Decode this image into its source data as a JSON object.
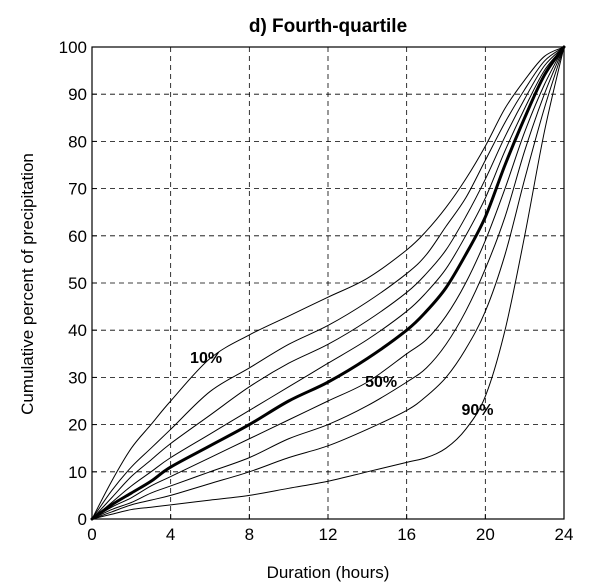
{
  "chart_data": {
    "type": "line",
    "title": "d) Fourth-quartile",
    "xlabel": "Duration (hours)",
    "ylabel": "Cumulative percent of precipitation",
    "xlim": [
      0,
      24
    ],
    "ylim": [
      0,
      100
    ],
    "xticks": [
      0,
      4,
      8,
      12,
      16,
      20,
      24
    ],
    "yticks": [
      0,
      10,
      20,
      30,
      40,
      50,
      60,
      70,
      80,
      90,
      100
    ],
    "grid": true,
    "legend": "none",
    "line_color": "#000000",
    "x": [
      0,
      1,
      2,
      3,
      4,
      6,
      8,
      10,
      12,
      14,
      16,
      17,
      18,
      19,
      20,
      21,
      22,
      23,
      24
    ],
    "series": [
      {
        "name": "10%",
        "label_at": [
          5.8,
          33
        ],
        "bold": false,
        "values": [
          0,
          8,
          15,
          20,
          25,
          34,
          39,
          43,
          47,
          51,
          57,
          61,
          66,
          72,
          79,
          87,
          93,
          98,
          100
        ]
      },
      {
        "name": "",
        "bold": false,
        "values": [
          0,
          6,
          11,
          15,
          19,
          27,
          32,
          37,
          41,
          46,
          52,
          56,
          62,
          68,
          76,
          84,
          91,
          97,
          100
        ]
      },
      {
        "name": "",
        "bold": false,
        "values": [
          0,
          4.5,
          9,
          12.5,
          16,
          22,
          28,
          33,
          37,
          42,
          48,
          52,
          57,
          64,
          72,
          81,
          89,
          96,
          100
        ]
      },
      {
        "name": "",
        "bold": false,
        "values": [
          0,
          3.5,
          7,
          10,
          13,
          18,
          23,
          28,
          33,
          38,
          44,
          48,
          53,
          60,
          68,
          78,
          87,
          95,
          100
        ]
      },
      {
        "name": "50%",
        "label_at": [
          14.7,
          28
        ],
        "bold": true,
        "values": [
          0,
          3,
          5.5,
          8,
          11,
          15.5,
          20,
          25,
          29,
          34,
          40,
          44,
          49,
          56,
          64,
          75,
          85,
          94,
          100
        ]
      },
      {
        "name": "",
        "bold": false,
        "values": [
          0,
          2.5,
          4.5,
          7,
          9,
          13,
          17,
          21,
          25,
          29,
          35,
          38,
          43,
          50,
          59,
          70,
          82,
          92,
          100
        ]
      },
      {
        "name": "",
        "bold": false,
        "values": [
          0,
          2,
          3.5,
          5.5,
          7,
          10,
          13,
          17,
          20,
          24,
          29,
          32,
          37,
          44,
          53,
          64,
          78,
          90,
          100
        ]
      },
      {
        "name": "",
        "bold": false,
        "values": [
          0,
          1.5,
          3,
          4,
          5,
          7.5,
          10,
          13,
          15.5,
          19,
          23,
          26,
          30,
          36,
          44,
          56,
          72,
          87,
          100
        ]
      },
      {
        "name": "90%",
        "label_at": [
          19.6,
          22
        ],
        "bold": false,
        "values": [
          0,
          1,
          2,
          2.5,
          3,
          4,
          5,
          6.5,
          8,
          10,
          12,
          13,
          15,
          19,
          26,
          40,
          60,
          82,
          100
        ]
      }
    ]
  }
}
